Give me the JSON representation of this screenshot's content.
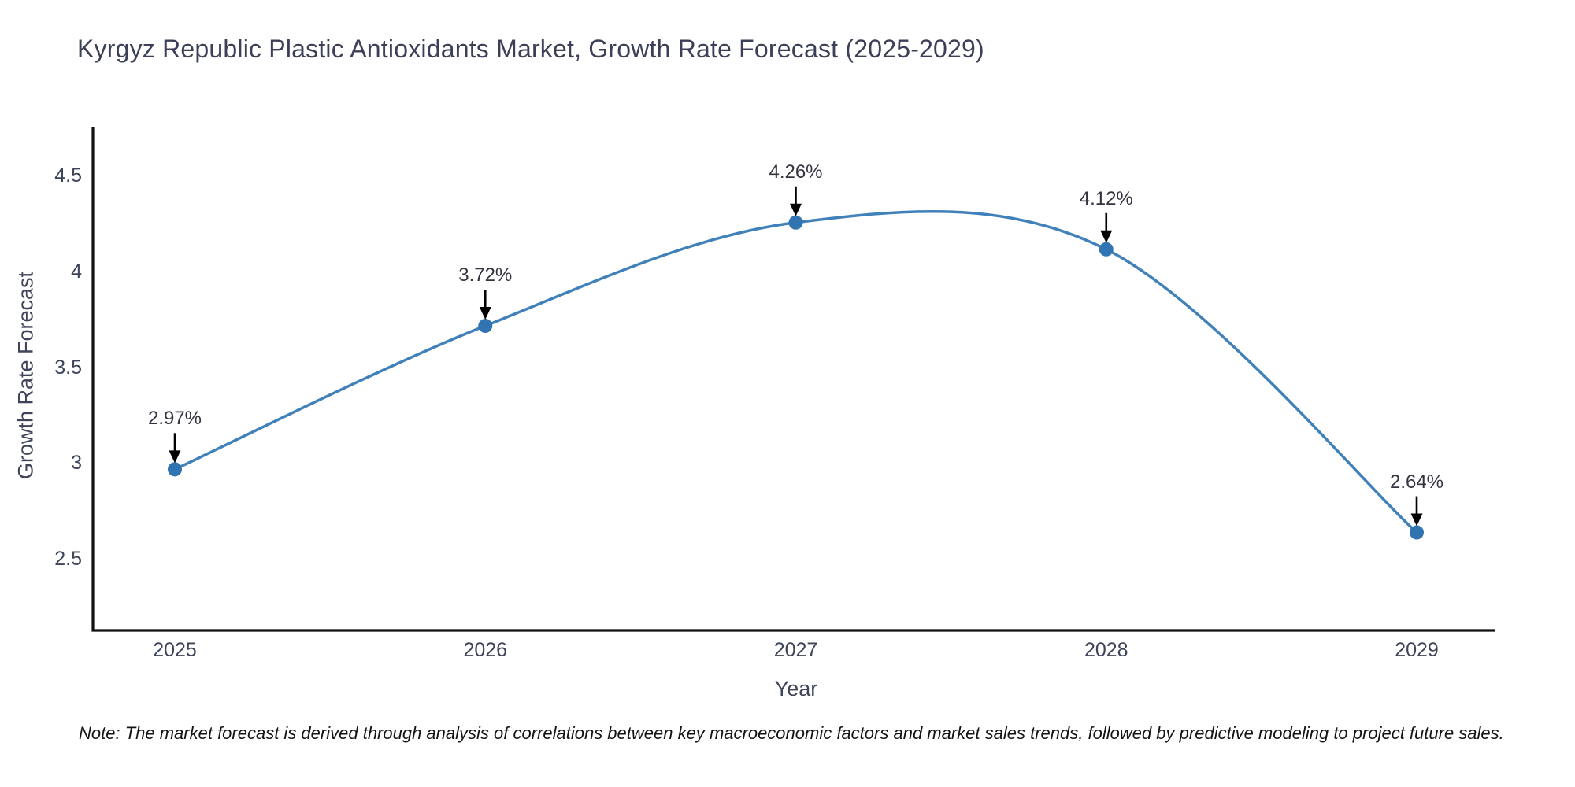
{
  "chart_data": {
    "type": "line",
    "title": "Kyrgyz Republic Plastic Antioxidants Market, Growth Rate Forecast (2025-2029)",
    "xlabel": "Year",
    "ylabel": "Growth Rate Forecast",
    "categories": [
      "2025",
      "2026",
      "2027",
      "2028",
      "2029"
    ],
    "series": [
      {
        "name": "Growth Rate Forecast",
        "values": [
          2.97,
          3.72,
          4.26,
          4.12,
          2.64
        ]
      }
    ],
    "point_labels": [
      "2.97%",
      "3.72%",
      "4.26%",
      "4.12%",
      "2.64%"
    ],
    "yticks": [
      2.5,
      3,
      3.5,
      4,
      4.5
    ],
    "ytick_labels": [
      "2.5",
      "3",
      "3.5",
      "4",
      "4.5"
    ],
    "ylim": [
      2.128,
      4.761
    ],
    "line_shape": "spline",
    "grid": false,
    "legend": "none",
    "colors": {
      "line": "#4181ba",
      "marker": "#3174b2",
      "arrow": "#000000",
      "axis": "#111111",
      "text": "#40445a"
    }
  },
  "note": {
    "text": "Note: The market forecast is derived through analysis of correlations between key macroeconomic factors and market sales trends, followed by predictive modeling to project future sales."
  }
}
